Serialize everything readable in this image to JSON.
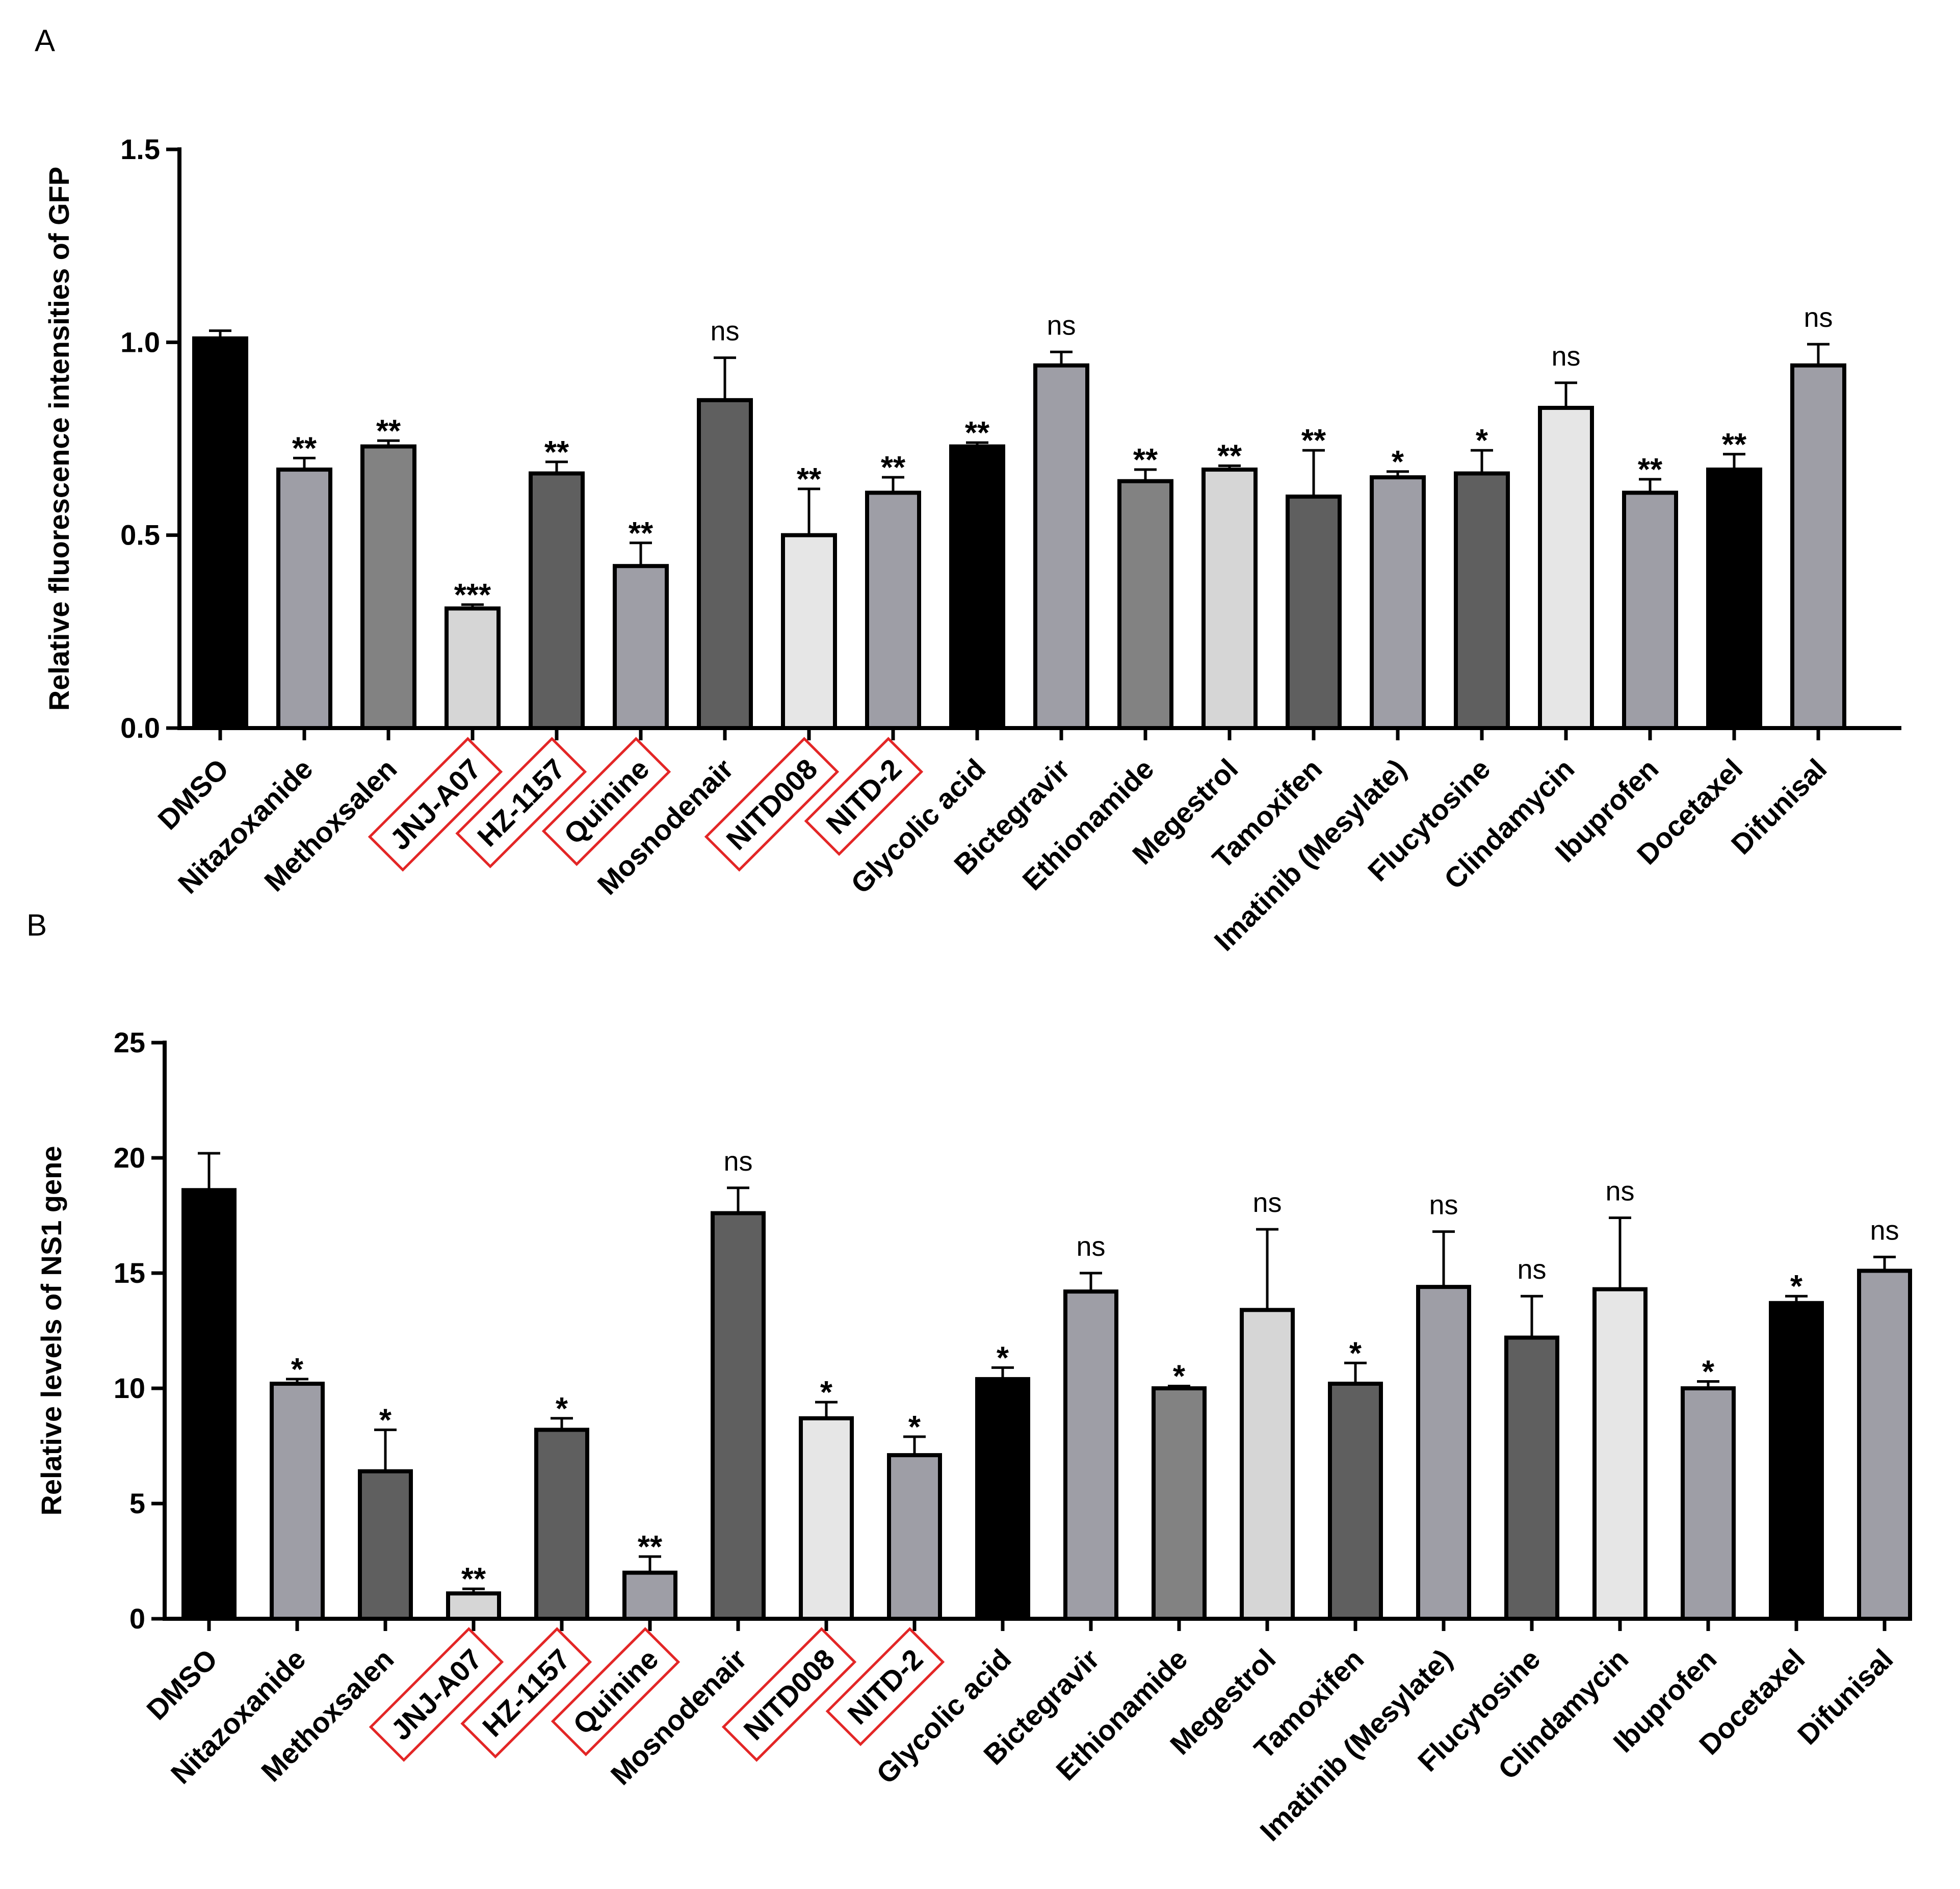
{
  "panel_labels": [
    "A",
    "B"
  ],
  "colors": {
    "black": "#000000",
    "dark": "#5f5f5f",
    "medium": "#828282",
    "light": "#9e9ea6",
    "pale": "#d6d6d6",
    "whiteish": "#e6e6e6",
    "highlight_box": "#e32626"
  },
  "highlighted": [
    "JNJ-A07",
    "HZ-1157",
    "Quinine",
    "NITD008",
    "NITD-2"
  ],
  "chart_data": [
    {
      "type": "bar",
      "panel": "A",
      "ylabel": "Relative fluorescence intensities of GFP",
      "xlabel": "",
      "ylim": [
        0,
        1.5
      ],
      "yticks": [
        "0.0",
        "0.5",
        "1.0",
        "1.5"
      ],
      "categories": [
        "DMSO",
        "Nitazoxanide",
        "Methoxsalen",
        "JNJ-A07",
        "HZ-1157",
        "Quinine",
        "Mosnodenair",
        "NITD008",
        "NITD-2",
        "Glycolic acid",
        "Bictegravir",
        "Ethionamide",
        "Megestrol",
        "Tamoxifen",
        "Imatinib (Mesylate)",
        "Flucytosine",
        "Clindamycin",
        "Ibuprofen",
        "Docetaxel",
        "Difunisal"
      ],
      "values": [
        1.01,
        0.67,
        0.73,
        0.31,
        0.66,
        0.42,
        0.85,
        0.5,
        0.61,
        0.73,
        0.94,
        0.64,
        0.67,
        0.6,
        0.65,
        0.66,
        0.83,
        0.61,
        0.67,
        0.94
      ],
      "errors": [
        0.02,
        0.03,
        0.015,
        0.01,
        0.03,
        0.06,
        0.11,
        0.12,
        0.04,
        0.01,
        0.035,
        0.03,
        0.01,
        0.12,
        0.015,
        0.06,
        0.065,
        0.035,
        0.04,
        0.055
      ],
      "significance": [
        "",
        "**",
        "**",
        "***",
        "**",
        "**",
        "ns",
        "**",
        "**",
        "**",
        "ns",
        "**",
        "**",
        "**",
        "*",
        "*",
        "ns",
        "**",
        "**",
        "ns"
      ],
      "bar_colors": [
        "black",
        "light",
        "medium",
        "pale",
        "dark",
        "light",
        "dark",
        "whiteish",
        "light",
        "black",
        "light",
        "medium",
        "pale",
        "dark",
        "light",
        "dark",
        "whiteish",
        "light",
        "black",
        "light"
      ]
    },
    {
      "type": "bar",
      "panel": "B",
      "ylabel": "Relative levels of NS1 gene",
      "xlabel": "",
      "ylim": [
        0,
        25
      ],
      "yticks": [
        "0",
        "5",
        "10",
        "15",
        "20",
        "25"
      ],
      "categories": [
        "DMSO",
        "Nitazoxanide",
        "Methoxsalen",
        "JNJ-A07",
        "HZ-1157",
        "Quinine",
        "Mosnodenair",
        "NITD008",
        "NITD-2",
        "Glycolic acid",
        "Bictegravir",
        "Ethionamide",
        "Megestrol",
        "Tamoxifen",
        "Imatinib (Mesylate)",
        "Flucytosine",
        "Clindamycin",
        "Ibuprofen",
        "Docetaxel",
        "Difunisal"
      ],
      "values": [
        18.6,
        10.2,
        6.4,
        1.1,
        8.2,
        2.0,
        17.6,
        8.7,
        7.1,
        10.4,
        14.2,
        10.0,
        13.4,
        10.2,
        14.4,
        12.2,
        14.3,
        10.0,
        13.7,
        15.1
      ],
      "errors": [
        1.6,
        0.2,
        1.8,
        0.2,
        0.5,
        0.7,
        1.1,
        0.7,
        0.8,
        0.5,
        0.8,
        0.1,
        3.5,
        0.9,
        2.4,
        1.8,
        3.1,
        0.3,
        0.3,
        0.6
      ],
      "significance": [
        "",
        "*",
        "*",
        "**",
        "*",
        "**",
        "ns",
        "*",
        "*",
        "*",
        "ns",
        "*",
        "ns",
        "*",
        "ns",
        "ns",
        "ns",
        "*",
        "*",
        "ns"
      ],
      "bar_colors": [
        "black",
        "light",
        "dark",
        "pale",
        "dark",
        "light",
        "dark",
        "whiteish",
        "light",
        "black",
        "light",
        "medium",
        "pale",
        "dark",
        "light",
        "dark",
        "whiteish",
        "light",
        "black",
        "light"
      ]
    }
  ]
}
